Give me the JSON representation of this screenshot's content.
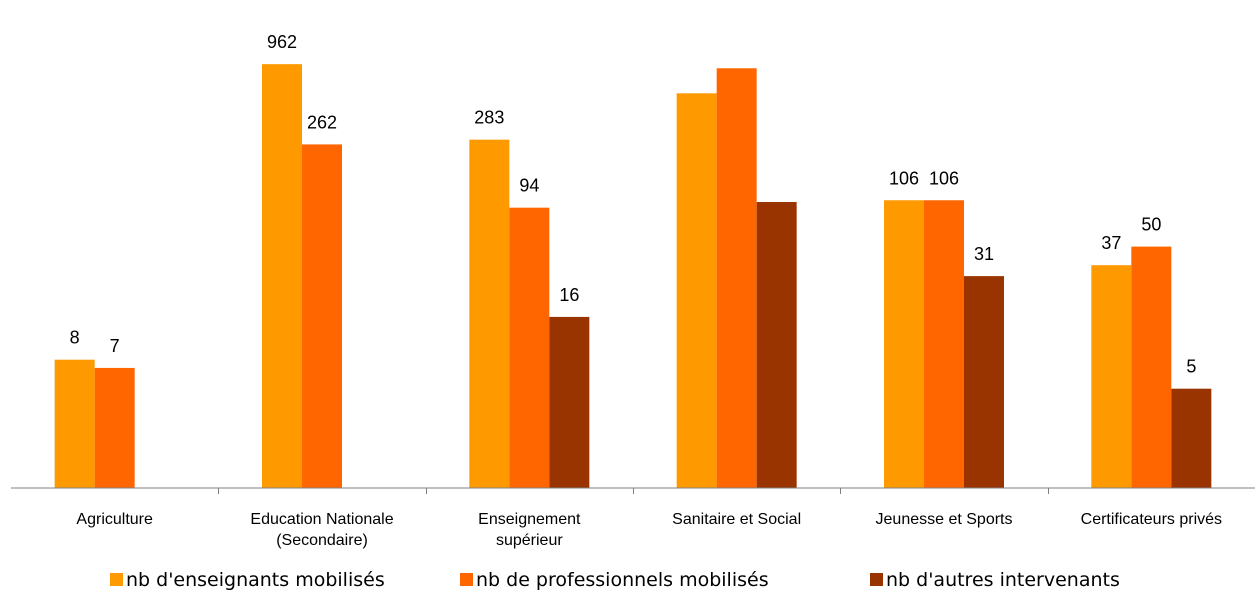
{
  "chart_data": {
    "type": "bar",
    "categories": [
      [
        "Agriculture"
      ],
      [
        "Education Nationale",
        "(Secondaire)"
      ],
      [
        "Enseignement",
        "supérieur"
      ],
      [
        "Sanitaire et Social"
      ],
      [
        "Jeunesse et Sports"
      ],
      [
        "Certificateurs privés"
      ]
    ],
    "series": [
      {
        "name": "nb d'enseignants mobilisés",
        "color": "#FF9900",
        "values": [
          8,
          962,
          283,
          600,
          106,
          37
        ],
        "labels": [
          "8",
          "962",
          "283",
          "",
          "106",
          "37"
        ]
      },
      {
        "name": "nb de professionnels mobilisés",
        "color": "#FF6600",
        "values": [
          7,
          262,
          94,
          900,
          106,
          50
        ],
        "labels": [
          "7",
          "262",
          "94",
          "",
          "106",
          "50"
        ]
      },
      {
        "name": "nb d'autres intervenants",
        "color": "#993300",
        "values": [
          0,
          0,
          16,
          103,
          31,
          5
        ],
        "labels": [
          "",
          "",
          "16",
          "",
          "31",
          "5"
        ]
      }
    ],
    "y_scale": "log",
    "ylim": [
      1,
      1250
    ],
    "grid": false,
    "legend_position": "bottom"
  }
}
